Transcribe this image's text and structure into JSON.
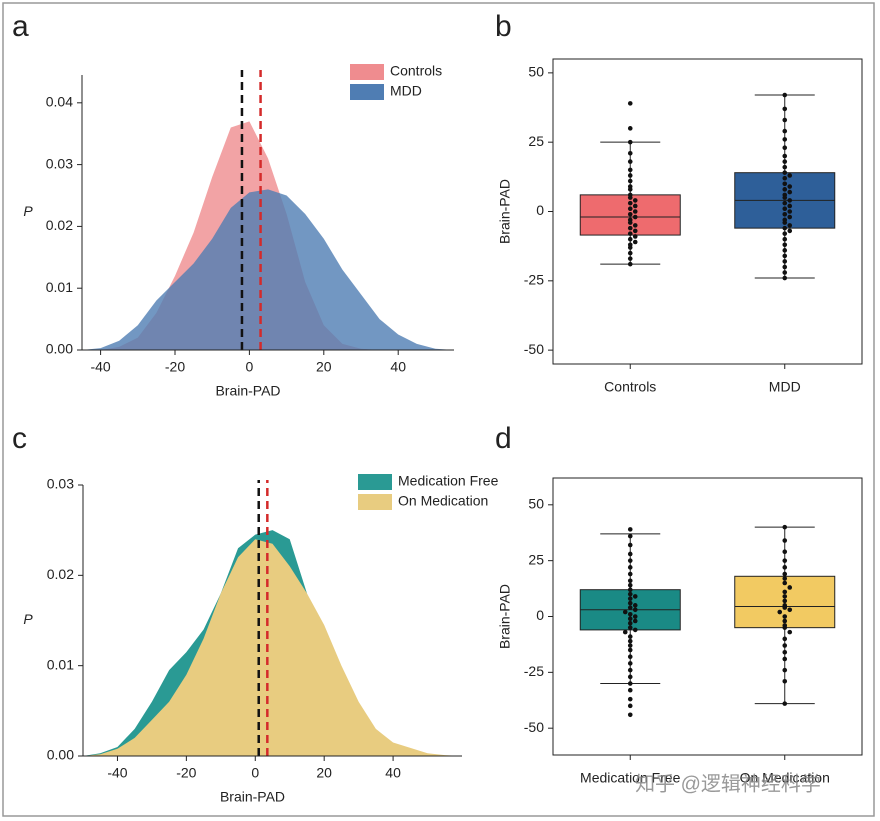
{
  "chart_data": [
    {
      "type": "density",
      "panel_label": "a",
      "x_label": "Brain-PAD",
      "y_label": "P",
      "xlim": [
        -45,
        55
      ],
      "xticks": [
        -40,
        -20,
        0,
        20,
        40
      ],
      "ylim": [
        0,
        0.0445
      ],
      "yticks": [
        {
          "value": 0,
          "label": "0.00"
        },
        {
          "value": 0.01,
          "label": "0.01"
        },
        {
          "value": 0.02,
          "label": "0.02"
        },
        {
          "value": 0.03,
          "label": "0.03"
        },
        {
          "value": 0.04,
          "label": "0.04"
        }
      ],
      "fill_opacity": 0.8,
      "legend": "upper right",
      "x": [
        -45,
        -40,
        -35,
        -30,
        -25,
        -20,
        -15,
        -10,
        -5,
        0,
        5,
        10,
        15,
        20,
        25,
        30,
        35,
        40,
        45,
        50,
        55
      ],
      "series": [
        {
          "name": "Controls",
          "color": "#ef8c8f",
          "values": [
            0,
            0,
            0.0005,
            0.002,
            0.006,
            0.012,
            0.019,
            0.028,
            0.036,
            0.037,
            0.031,
            0.022,
            0.011,
            0.004,
            0.001,
            0.0002,
            0,
            0,
            0,
            0,
            0
          ]
        },
        {
          "name": "MDD",
          "color": "#4f7db3",
          "values": [
            0,
            0.0003,
            0.0015,
            0.004,
            0.008,
            0.011,
            0.014,
            0.018,
            0.023,
            0.0255,
            0.026,
            0.025,
            0.022,
            0.018,
            0.013,
            0.009,
            0.005,
            0.0025,
            0.001,
            0.0002,
            0
          ]
        }
      ],
      "mean_lines": [
        {
          "value": -2,
          "color": "#111111"
        },
        {
          "value": 3,
          "color": "#d42a2a"
        }
      ]
    },
    {
      "type": "box",
      "panel_label": "b",
      "y_label": "Brain-PAD",
      "ylim": [
        -55,
        55
      ],
      "yticks": [
        -50,
        -25,
        0,
        25,
        50
      ],
      "categories": [
        "Controls",
        "MDD"
      ],
      "boxes": [
        {
          "color": "#ee6b6e",
          "low": -19,
          "q1": -8.5,
          "median": -2,
          "q3": 6,
          "high": 25,
          "points": [
            39,
            30,
            25,
            21,
            18,
            15,
            13,
            11,
            9,
            8,
            6,
            5,
            4,
            3,
            2,
            1,
            0,
            -1,
            -2,
            -3,
            -4,
            -5,
            -6,
            -7,
            -8,
            -9,
            -10,
            -11,
            -12,
            -13,
            -15,
            -17,
            -19
          ]
        },
        {
          "color": "#2e5f99",
          "low": -24,
          "q1": -6,
          "median": 4,
          "q3": 14,
          "high": 42,
          "points": [
            42,
            37,
            33,
            29,
            26,
            23,
            20,
            18,
            16,
            14,
            13,
            12,
            10,
            9,
            8,
            7,
            6,
            5,
            4,
            3,
            2,
            1,
            0,
            -1,
            -2,
            -3,
            -4,
            -5,
            -6,
            -7,
            -8,
            -10,
            -12,
            -14,
            -16,
            -18,
            -20,
            -22,
            -24
          ]
        }
      ]
    },
    {
      "type": "density",
      "panel_label": "c",
      "x_label": "Brain-PAD",
      "y_label": "P",
      "xlim": [
        -50,
        60
      ],
      "xticks": [
        -40,
        -20,
        0,
        20,
        40
      ],
      "ylim": [
        0,
        0.03
      ],
      "yticks": [
        {
          "value": 0,
          "label": "0.00"
        },
        {
          "value": 0.01,
          "label": "0.01"
        },
        {
          "value": 0.02,
          "label": "0.02"
        },
        {
          "value": 0.03,
          "label": "0.03"
        }
      ],
      "fill_opacity": 1,
      "legend": "upper right",
      "x": [
        -50,
        -45,
        -40,
        -35,
        -30,
        -25,
        -20,
        -15,
        -10,
        -5,
        0,
        5,
        10,
        15,
        20,
        25,
        30,
        35,
        40,
        45,
        50,
        55,
        60
      ],
      "series": [
        {
          "name": "Medication Free",
          "color": "#2a9a94",
          "values": [
            0,
            0.0003,
            0.001,
            0.003,
            0.006,
            0.0095,
            0.0115,
            0.014,
            0.018,
            0.023,
            0.0245,
            0.025,
            0.024,
            0.018,
            0.011,
            0.006,
            0.003,
            0.0015,
            0.0005,
            0.0002,
            0,
            0,
            0
          ]
        },
        {
          "name": "On Medication",
          "color": "#e8cc80",
          "values": [
            0,
            0.0002,
            0.0008,
            0.002,
            0.004,
            0.006,
            0.009,
            0.013,
            0.018,
            0.022,
            0.024,
            0.0235,
            0.021,
            0.018,
            0.0145,
            0.01,
            0.006,
            0.003,
            0.0015,
            0.0009,
            0.0003,
            0.0001,
            0
          ]
        }
      ],
      "mean_lines": [
        {
          "value": 1,
          "color": "#111111"
        },
        {
          "value": 3.5,
          "color": "#d42a2a"
        }
      ]
    },
    {
      "type": "box",
      "panel_label": "d",
      "y_label": "Brain-PAD",
      "ylim": [
        -62,
        62
      ],
      "yticks": [
        -50,
        -25,
        0,
        25,
        50
      ],
      "categories": [
        "Medication Free",
        "On Medication"
      ],
      "boxes": [
        {
          "color": "#1a8a85",
          "low": -30,
          "q1": -6,
          "median": 3,
          "q3": 12,
          "high": 37,
          "points": [
            39,
            36,
            32,
            28,
            25,
            22,
            19,
            16,
            14,
            12,
            10,
            9,
            8,
            6,
            5,
            4,
            3,
            2,
            1,
            0,
            -1,
            -2,
            -3,
            -5,
            -6,
            -7,
            -9,
            -11,
            -13,
            -15,
            -18,
            -21,
            -24,
            -27,
            -30,
            -33,
            -37,
            -40,
            -44
          ]
        },
        {
          "color": "#f2ca62",
          "low": -39,
          "q1": -5,
          "median": 4.5,
          "q3": 18,
          "high": 40,
          "points": [
            40,
            34,
            29,
            25,
            22,
            19,
            17,
            15,
            13,
            11,
            9,
            7,
            5,
            4,
            3,
            2,
            0,
            -2,
            -4,
            -5,
            -7,
            -10,
            -13,
            -16,
            -19,
            -24,
            -29,
            -39
          ]
        }
      ]
    }
  ],
  "watermark": "知乎 @逻辑神经科学"
}
